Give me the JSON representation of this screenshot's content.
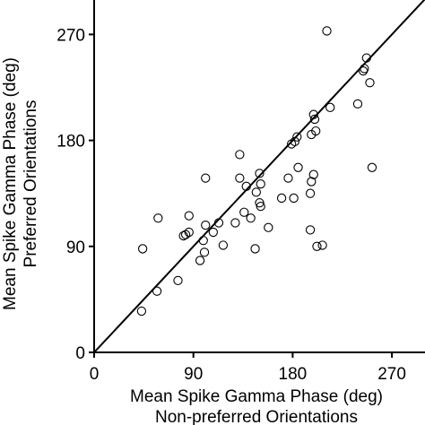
{
  "chart_data": {
    "type": "scatter",
    "xlabel_line1": "Mean Spike Gamma Phase (deg)",
    "xlabel_line2": "Non-preferred Orientations",
    "ylabel_line1": "Mean Spike Gamma Phase (deg)",
    "ylabel_line2": "Preferred Orientations",
    "xlim": [
      0,
      300
    ],
    "ylim": [
      0,
      300
    ],
    "xticks": [
      0,
      90,
      180,
      270
    ],
    "yticks": [
      0,
      90,
      180,
      270
    ],
    "xtick_labels": [
      "0",
      "90",
      "180",
      "270"
    ],
    "ytick_labels": [
      "0",
      "90",
      "180",
      "270"
    ],
    "reference_line": {
      "type": "identity",
      "from": [
        0,
        0
      ],
      "to": [
        300,
        300
      ]
    },
    "grid": false,
    "marker": "open-circle",
    "points": [
      {
        "x": 44,
        "y": 88
      },
      {
        "x": 43,
        "y": 35
      },
      {
        "x": 57,
        "y": 52
      },
      {
        "x": 58,
        "y": 114
      },
      {
        "x": 76,
        "y": 61
      },
      {
        "x": 81,
        "y": 99
      },
      {
        "x": 83,
        "y": 100
      },
      {
        "x": 86,
        "y": 102
      },
      {
        "x": 86,
        "y": 116
      },
      {
        "x": 96,
        "y": 78
      },
      {
        "x": 99,
        "y": 95
      },
      {
        "x": 100,
        "y": 85
      },
      {
        "x": 101,
        "y": 108
      },
      {
        "x": 101,
        "y": 148
      },
      {
        "x": 108,
        "y": 102
      },
      {
        "x": 113,
        "y": 110
      },
      {
        "x": 117,
        "y": 91
      },
      {
        "x": 128,
        "y": 110
      },
      {
        "x": 132,
        "y": 168
      },
      {
        "x": 132,
        "y": 148
      },
      {
        "x": 136,
        "y": 119
      },
      {
        "x": 138,
        "y": 141
      },
      {
        "x": 142,
        "y": 114
      },
      {
        "x": 146,
        "y": 88
      },
      {
        "x": 147,
        "y": 136
      },
      {
        "x": 150,
        "y": 152
      },
      {
        "x": 150,
        "y": 127
      },
      {
        "x": 151,
        "y": 124
      },
      {
        "x": 151,
        "y": 143
      },
      {
        "x": 158,
        "y": 106
      },
      {
        "x": 170,
        "y": 131
      },
      {
        "x": 176,
        "y": 148
      },
      {
        "x": 179,
        "y": 177
      },
      {
        "x": 181,
        "y": 131
      },
      {
        "x": 182,
        "y": 179
      },
      {
        "x": 184,
        "y": 183
      },
      {
        "x": 185,
        "y": 157
      },
      {
        "x": 196,
        "y": 104
      },
      {
        "x": 196,
        "y": 135
      },
      {
        "x": 197,
        "y": 145
      },
      {
        "x": 197,
        "y": 185
      },
      {
        "x": 199,
        "y": 151
      },
      {
        "x": 199,
        "y": 202
      },
      {
        "x": 200,
        "y": 198
      },
      {
        "x": 201,
        "y": 188
      },
      {
        "x": 202,
        "y": 90
      },
      {
        "x": 207,
        "y": 91
      },
      {
        "x": 211,
        "y": 273
      },
      {
        "x": 214,
        "y": 208
      },
      {
        "x": 239,
        "y": 211
      },
      {
        "x": 244,
        "y": 239
      },
      {
        "x": 245,
        "y": 241
      },
      {
        "x": 247,
        "y": 250
      },
      {
        "x": 250,
        "y": 229
      },
      {
        "x": 252,
        "y": 157
      }
    ]
  }
}
